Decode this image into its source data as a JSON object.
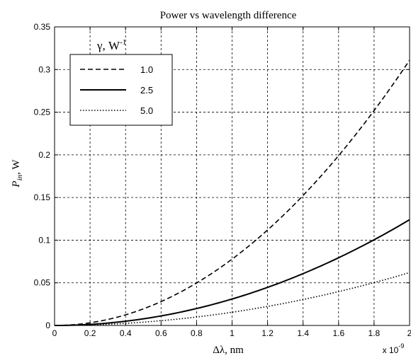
{
  "chart_data": {
    "type": "line",
    "title": "Power vs wavelength difference",
    "xlabel": "Δλ, nm",
    "ylabel": "P_in, W",
    "ylabel_main": "P",
    "ylabel_sub": "in",
    "ylabel_rest": ", W",
    "x_exponent_label": "x 10",
    "x_exponent_power": "-9",
    "xlim": [
      0,
      2
    ],
    "ylim": [
      0,
      0.35
    ],
    "xticks": [
      0,
      0.2,
      0.4,
      0.6,
      0.8,
      1,
      1.2,
      1.4,
      1.6,
      1.8,
      2
    ],
    "xtick_labels": [
      "0",
      "0.2",
      "0.4",
      "0.6",
      "0.8",
      "1",
      "1.2",
      "1.4",
      "1.6",
      "1.8",
      "2"
    ],
    "yticks": [
      0,
      0.05,
      0.1,
      0.15,
      0.2,
      0.25,
      0.3,
      0.35
    ],
    "ytick_labels": [
      "0",
      "0.05",
      "0.1",
      "0.15",
      "0.2",
      "0.25",
      "0.3",
      "0.35"
    ],
    "grid": true,
    "legend_title": "γ, W",
    "legend_title_sup": "-1",
    "legend_position": "top-left",
    "x": [
      0,
      0.2,
      0.4,
      0.6,
      0.8,
      1.0,
      1.2,
      1.4,
      1.6,
      1.8,
      2.0
    ],
    "series": [
      {
        "name": "1.0",
        "style": "dashed",
        "values": [
          0,
          0.0031,
          0.0125,
          0.028,
          0.05,
          0.078,
          0.112,
          0.153,
          0.2,
          0.252,
          0.311
        ]
      },
      {
        "name": "2.5",
        "style": "solid",
        "values": [
          0,
          0.0012,
          0.005,
          0.0112,
          0.02,
          0.031,
          0.045,
          0.061,
          0.08,
          0.1,
          0.124
        ]
      },
      {
        "name": "5.0",
        "style": "dotted",
        "values": [
          0,
          0.0006,
          0.0025,
          0.0056,
          0.01,
          0.0156,
          0.0225,
          0.0306,
          0.04,
          0.05,
          0.062
        ]
      }
    ]
  }
}
